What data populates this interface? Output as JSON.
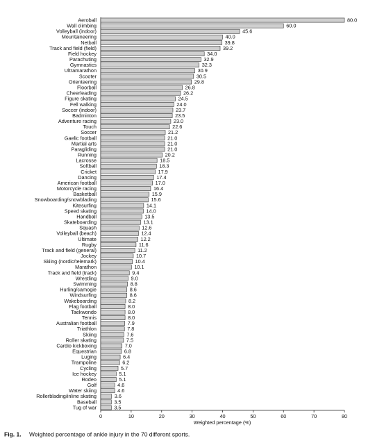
{
  "chart_data": {
    "type": "barh",
    "xlabel": "Weighted percentage (%)",
    "caption_label": "Fig. 1.",
    "caption_text": "Weighted percentage of ankle injury in the 70 different sports.",
    "categories": [
      "Aeroball",
      "Wall climbing",
      "Volleyball (indoor)",
      "Mountaineering",
      "Netball",
      "Track and field (field)",
      "Field hockey",
      "Parachuting",
      "Gymnastics",
      "Ultramarathon",
      "Scooter",
      "Orienteering",
      "Floorball",
      "Cheerleading",
      "Figure skating",
      "Fell walking",
      "Soccer (indoor)",
      "Badminton",
      "Adventure racing",
      "Touch",
      "Soccer",
      "Gaelic football",
      "Martial arts",
      "Paragliding",
      "Running",
      "Lacrosse",
      "Softball",
      "Cricket",
      "Dancing",
      "American football",
      "Motorcycle racing",
      "Basketball",
      "Snowboarding/snowblading",
      "Kitesurfing",
      "Speed skating",
      "Handball",
      "Skateboarding",
      "Squash",
      "Volleyball (beach)",
      "Ultimate",
      "Rugby",
      "Track and field (general)",
      "Jockey",
      "Skiing (nordic/telemark)",
      "Marathon",
      "Track and field (track)",
      "Wrestling",
      "Swimming",
      "Hurling/camogie",
      "Windsurfing",
      "Wakeboarding",
      "Flag football",
      "Taekwondo",
      "Tennis",
      "Australian football",
      "Triathlon",
      "Skiing",
      "Roller skating",
      "Cardio kickboxing",
      "Equestrian",
      "Luging",
      "Trampoline",
      "Cycling",
      "Ice hockey",
      "Rodeo",
      "Golf",
      "Water skiing",
      "Rollerblading/inline skating",
      "Baseball",
      "Tug of war"
    ],
    "values": [
      80.0,
      60.0,
      45.6,
      40.0,
      39.8,
      39.2,
      34.0,
      32.9,
      32.3,
      30.9,
      30.5,
      29.8,
      26.8,
      26.2,
      24.5,
      24.0,
      23.7,
      23.5,
      23.0,
      22.6,
      21.2,
      21.0,
      21.0,
      21.0,
      20.2,
      18.5,
      18.3,
      17.9,
      17.4,
      17.0,
      16.4,
      15.9,
      15.6,
      14.1,
      14.0,
      13.5,
      13.1,
      12.6,
      12.4,
      12.2,
      11.6,
      11.2,
      10.7,
      10.4,
      10.1,
      9.4,
      9.0,
      8.8,
      8.6,
      8.6,
      8.2,
      8.0,
      8.0,
      8.0,
      7.9,
      7.8,
      7.6,
      7.5,
      7.0,
      6.8,
      6.4,
      6.2,
      5.7,
      5.1,
      5.1,
      4.6,
      4.6,
      3.6,
      3.5,
      3.5
    ],
    "value_labels": [
      "80.0",
      "60.0",
      "45.6",
      "40.0",
      "39.8",
      "39.2",
      "34.0",
      "32.9",
      "32.3",
      "30.9",
      "30.5",
      "29.8",
      "26.8",
      "26.2",
      "24.5",
      "24.0",
      "23.7",
      "23.5",
      "23.0",
      "22.6",
      "21.2",
      "21.0",
      "21.0",
      "21.0",
      "20.2",
      "18.5",
      "18.3",
      "17.9",
      "17.4",
      "17.0",
      "16.4",
      "15.9",
      "15.6",
      "14.1",
      "14.0",
      "13.5",
      "13.1",
      "12.6",
      "12.4",
      "12.2",
      "11.6",
      "11.2",
      "10.7",
      "10.4",
      "10.1",
      "9.4",
      "9.0",
      "8.8",
      "8.6",
      "8.6",
      "8.2",
      "8.0",
      "8.0",
      "8.0",
      "7.9",
      "7.8",
      "7.6",
      "7.5",
      "7.0",
      "6.8",
      "6.4",
      "6.2",
      "5.7",
      "5.1",
      "5.1",
      "4.6",
      "4.6",
      "3.6",
      "3.5",
      "3.5"
    ],
    "color": "#cfcfcf",
    "xlim": [
      0,
      80
    ],
    "xticks": [
      0,
      10,
      20,
      30,
      40,
      50,
      60,
      70,
      80
    ]
  }
}
